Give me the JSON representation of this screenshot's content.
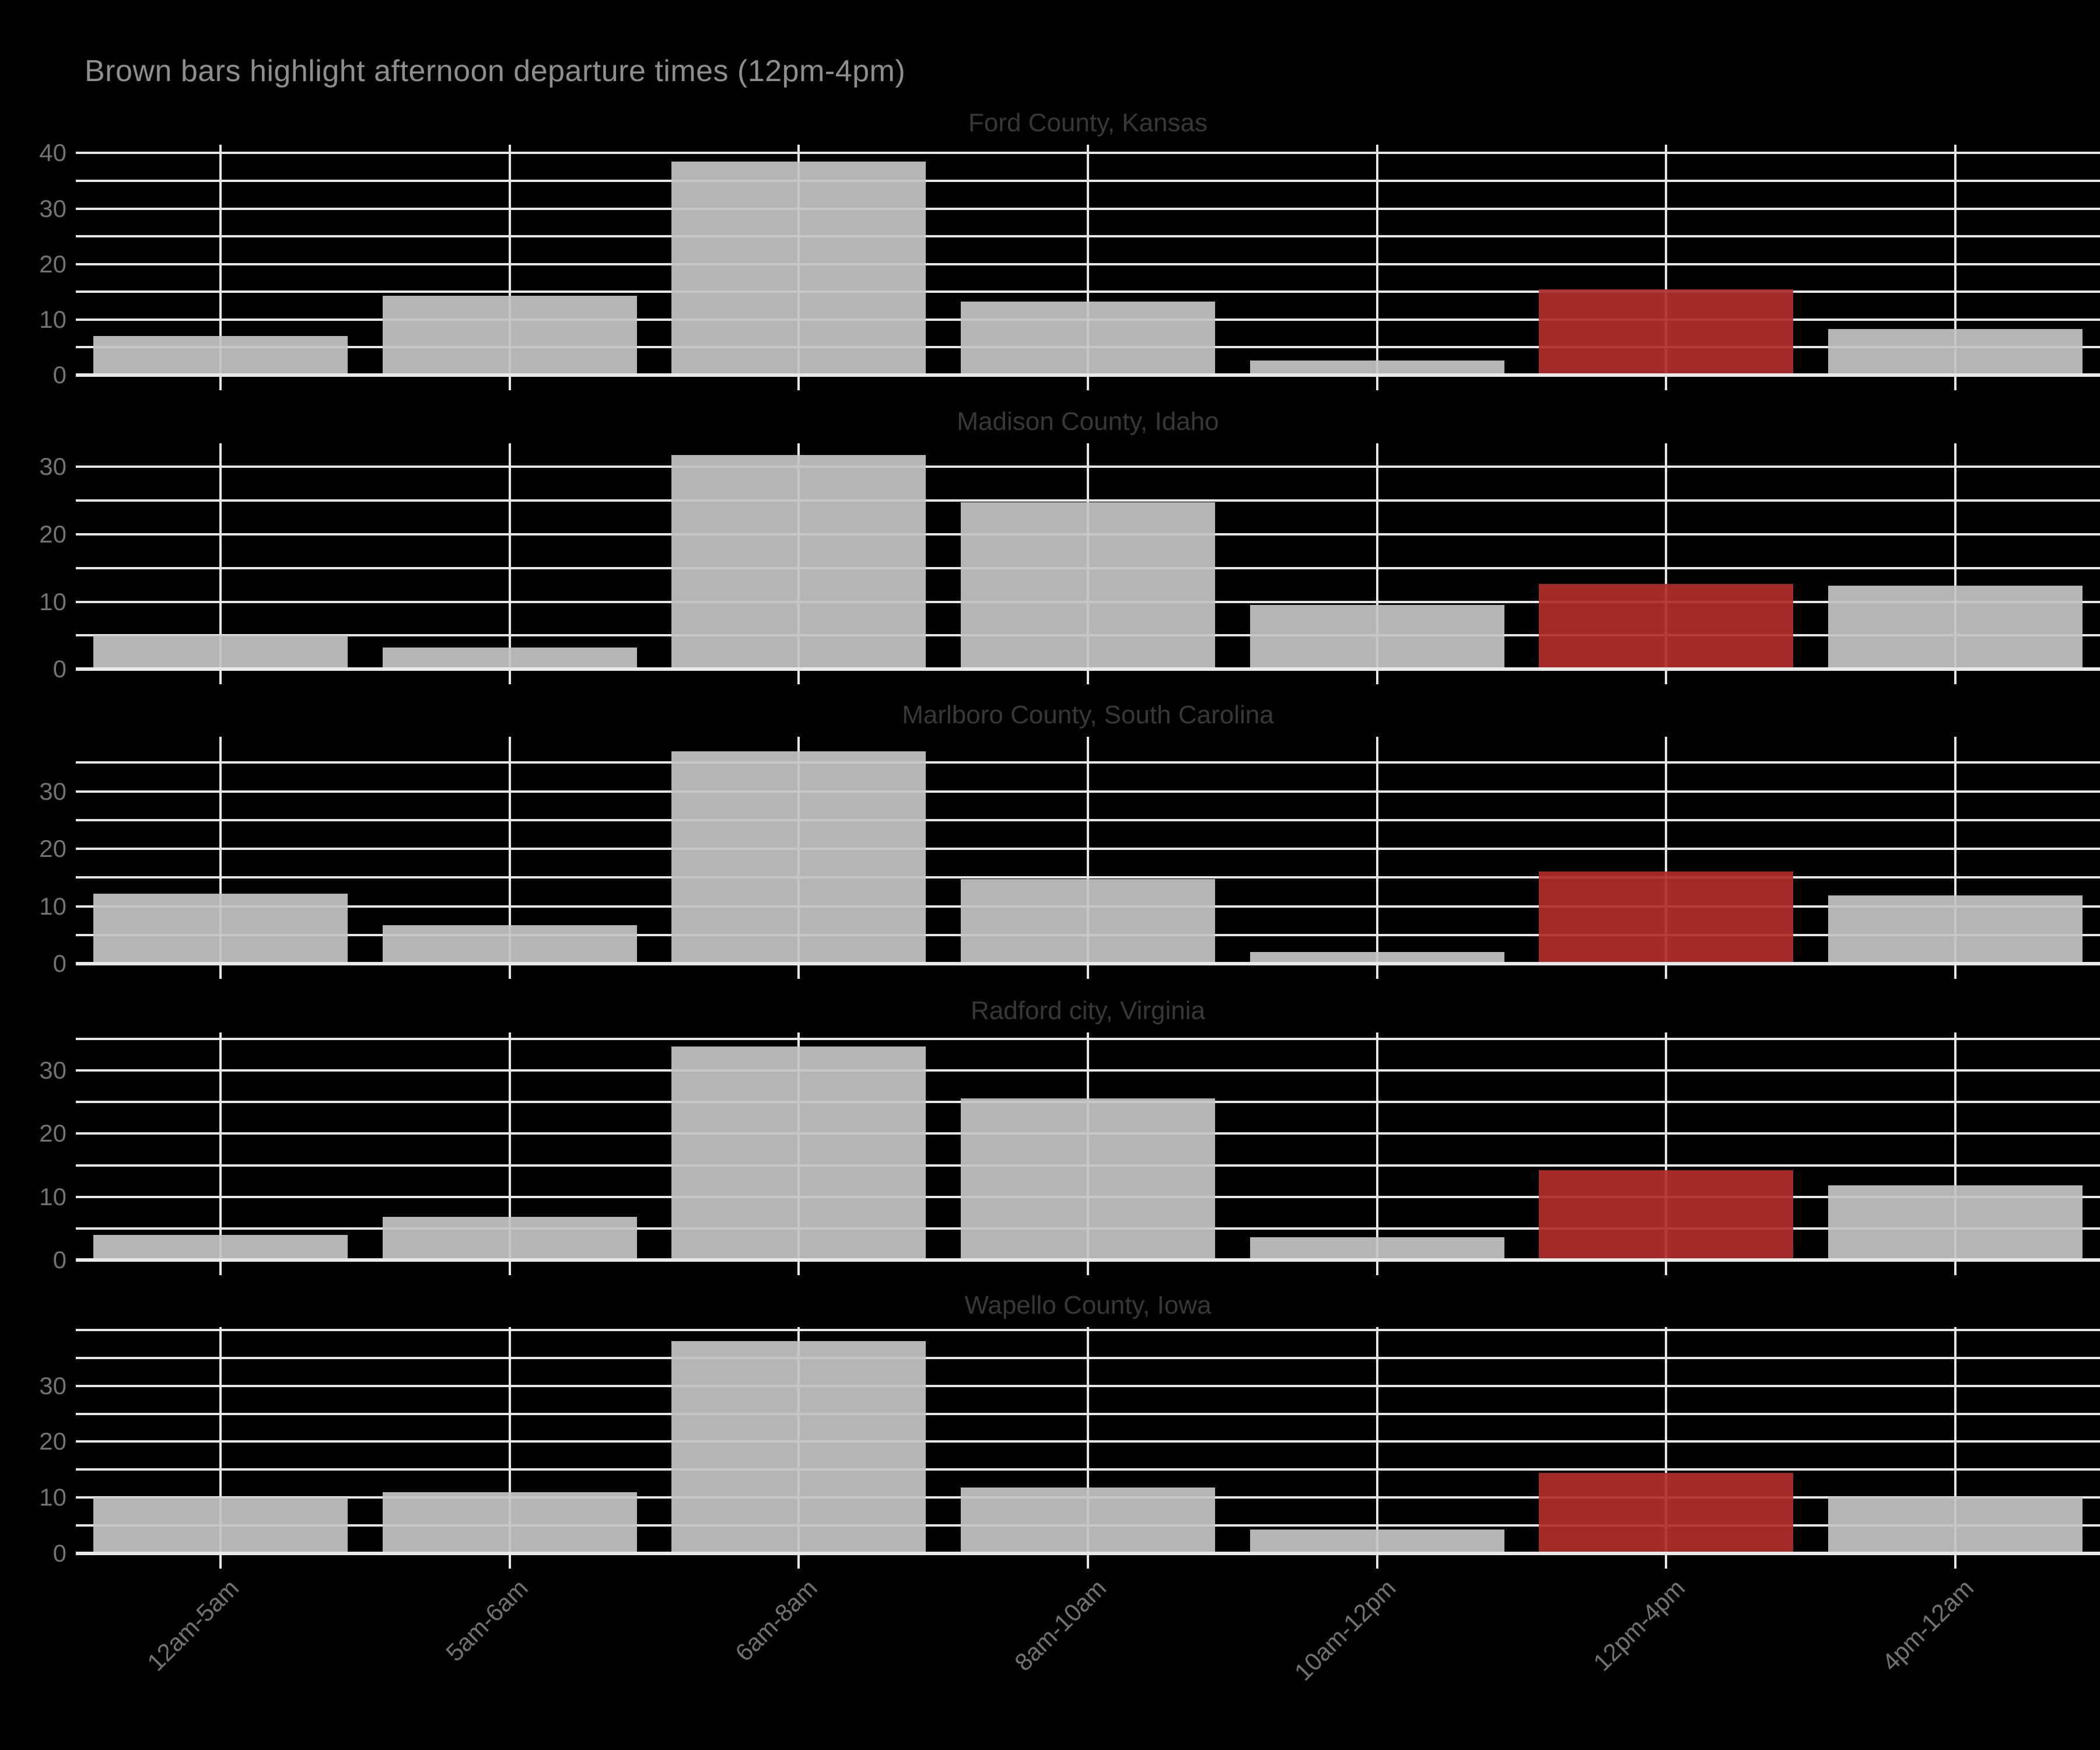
{
  "title": "Brown bars highlight afternoon departure times (12pm-4pm)",
  "chart_data": {
    "type": "bar",
    "layout": "5 stacked facet panels, shared x axis, black background, white gridlines every 5 units, rotated 45-degree x tick labels",
    "categories": [
      "12am-5am",
      "5am-6am",
      "6am-8am",
      "8am-10am",
      "10am-12pm",
      "12pm-4pm",
      "4pm-12am"
    ],
    "highlight_category": "12pm-4pm",
    "highlight_index": 5,
    "grid_step": 5,
    "colors": {
      "background": "#000000",
      "bar": "#b3b3b3",
      "highlight_bar": "#a42a28",
      "gridline": "#e6e6e6",
      "title_text": "#8e8e8e",
      "panel_title_text": "#383838",
      "tick_label_text": "#737373"
    },
    "panels": [
      {
        "label": "Ford County, Kansas",
        "values": [
          7,
          14.3,
          38.5,
          13.2,
          2.6,
          15.5,
          8.3
        ],
        "ylim": [
          0,
          41.5
        ],
        "yticks": [
          0,
          10,
          20,
          30,
          40
        ],
        "grid_max": 40
      },
      {
        "label": "Madison County, Idaho",
        "values": [
          5,
          3.2,
          31.8,
          24.8,
          9.5,
          12.6,
          12.4
        ],
        "ylim": [
          0,
          33.5
        ],
        "yticks": [
          0,
          10,
          20,
          30
        ],
        "grid_max": 30
      },
      {
        "label": "Marlboro County, South Carolina",
        "values": [
          12.2,
          6.7,
          37,
          14.7,
          2,
          16,
          11.9
        ],
        "ylim": [
          0,
          39.5
        ],
        "yticks": [
          0,
          10,
          20,
          30
        ],
        "grid_max": 35
      },
      {
        "label": "Radford city, Virginia",
        "values": [
          4,
          6.8,
          33.8,
          25.6,
          3.6,
          14.2,
          11.8
        ],
        "ylim": [
          0,
          36
        ],
        "yticks": [
          0,
          10,
          20,
          30
        ],
        "grid_max": 35
      },
      {
        "label": "Wapello County, Iowa",
        "values": [
          10,
          11,
          38,
          11.8,
          4.3,
          14.4,
          10.1
        ],
        "ylim": [
          0,
          40.5
        ],
        "yticks": [
          0,
          10,
          20,
          30
        ],
        "grid_max": 40
      }
    ]
  }
}
